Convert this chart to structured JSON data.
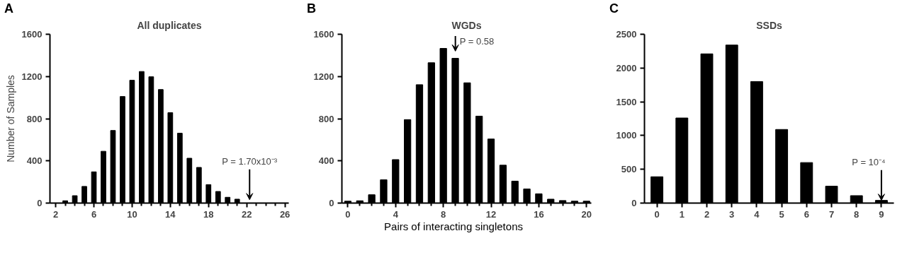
{
  "chart_data": [
    {
      "type": "bar",
      "title": "All duplicates",
      "ylabel": "Number of Samples",
      "annotations": [
        "A",
        "P = 1.70x10⁻³"
      ],
      "x": [
        3,
        4,
        5,
        6,
        7,
        8,
        9,
        10,
        11,
        12,
        13,
        14,
        15,
        16,
        17,
        18,
        19,
        20,
        21
      ],
      "values": [
        22,
        70,
        158,
        296,
        491,
        688,
        1010,
        1164,
        1247,
        1197,
        1076,
        857,
        662,
        425,
        338,
        175,
        110,
        55,
        37
      ],
      "color": "#000000",
      "xlim": [
        1.4,
        26.4
      ],
      "xticks": [
        2,
        {
          "value": 3,
          "label": null
        },
        {
          "value": 4,
          "label": null
        },
        {
          "value": 5,
          "label": null
        },
        6,
        {
          "value": 7,
          "label": null
        },
        {
          "value": 8,
          "label": null
        },
        {
          "value": 9,
          "label": null
        },
        10,
        {
          "value": 11,
          "label": null
        },
        {
          "value": 12,
          "label": null
        },
        {
          "value": 13,
          "label": null
        },
        14,
        {
          "value": 15,
          "label": null
        },
        {
          "value": 16,
          "label": null
        },
        {
          "value": 17,
          "label": null
        },
        18,
        {
          "value": 19,
          "label": null
        },
        {
          "value": 20,
          "label": null
        },
        {
          "value": 21,
          "label": null
        },
        22,
        {
          "value": 23,
          "label": null
        },
        {
          "value": 24,
          "label": null
        },
        {
          "value": 25,
          "label": null
        },
        26
      ],
      "ylim": [
        0,
        1600
      ],
      "yticks": [
        0,
        400,
        800,
        1200,
        1600
      ],
      "grid": false
    },
    {
      "type": "bar",
      "title": "WGDs",
      "xlabel": "Pairs of interacting singletons",
      "annotations": [
        "B",
        "P = 0.58"
      ],
      "x": [
        0,
        1,
        2,
        3,
        4,
        5,
        6,
        7,
        8,
        9,
        10,
        11,
        12,
        13,
        14,
        15,
        16,
        17,
        18,
        19,
        20
      ],
      "values": [
        18,
        22,
        79,
        221,
        412,
        791,
        1122,
        1330,
        1466,
        1372,
        1140,
        824,
        607,
        359,
        208,
        134,
        88,
        37,
        24,
        18,
        18
      ],
      "color": "#000000",
      "xlim": [
        -0.5,
        20.4
      ],
      "xticks": [
        0,
        {
          "value": 1,
          "label": null
        },
        {
          "value": 2,
          "label": null
        },
        {
          "value": 3,
          "label": null
        },
        4,
        {
          "value": 5,
          "label": null
        },
        {
          "value": 6,
          "label": null
        },
        {
          "value": 7,
          "label": null
        },
        8,
        {
          "value": 9,
          "label": null
        },
        {
          "value": 10,
          "label": null
        },
        {
          "value": 11,
          "label": null
        },
        12,
        {
          "value": 13,
          "label": null
        },
        {
          "value": 14,
          "label": null
        },
        {
          "value": 15,
          "label": null
        },
        16,
        {
          "value": 17,
          "label": null
        },
        {
          "value": 18,
          "label": null
        },
        {
          "value": 19,
          "label": null
        },
        20
      ],
      "ylim": [
        0,
        1600
      ],
      "yticks": [
        0,
        400,
        800,
        1200,
        1600
      ],
      "grid": false
    },
    {
      "type": "bar",
      "title": "SSDs",
      "annotations": [
        "C",
        {
          "text": "P = 10⁻⁴",
          "x": "9",
          "y": 40
        }
      ],
      "categories": [
        "0",
        "1",
        "2",
        "3",
        "4",
        "5",
        "6",
        "7",
        "8",
        "9"
      ],
      "values": [
        390,
        1260,
        2210,
        2340,
        1800,
        1090,
        600,
        250,
        110,
        40
      ],
      "color": "#000000",
      "ylim": [
        0,
        2500
      ],
      "yticks": [
        0,
        500,
        1000,
        1500,
        2000,
        2500
      ],
      "grid": false
    }
  ]
}
